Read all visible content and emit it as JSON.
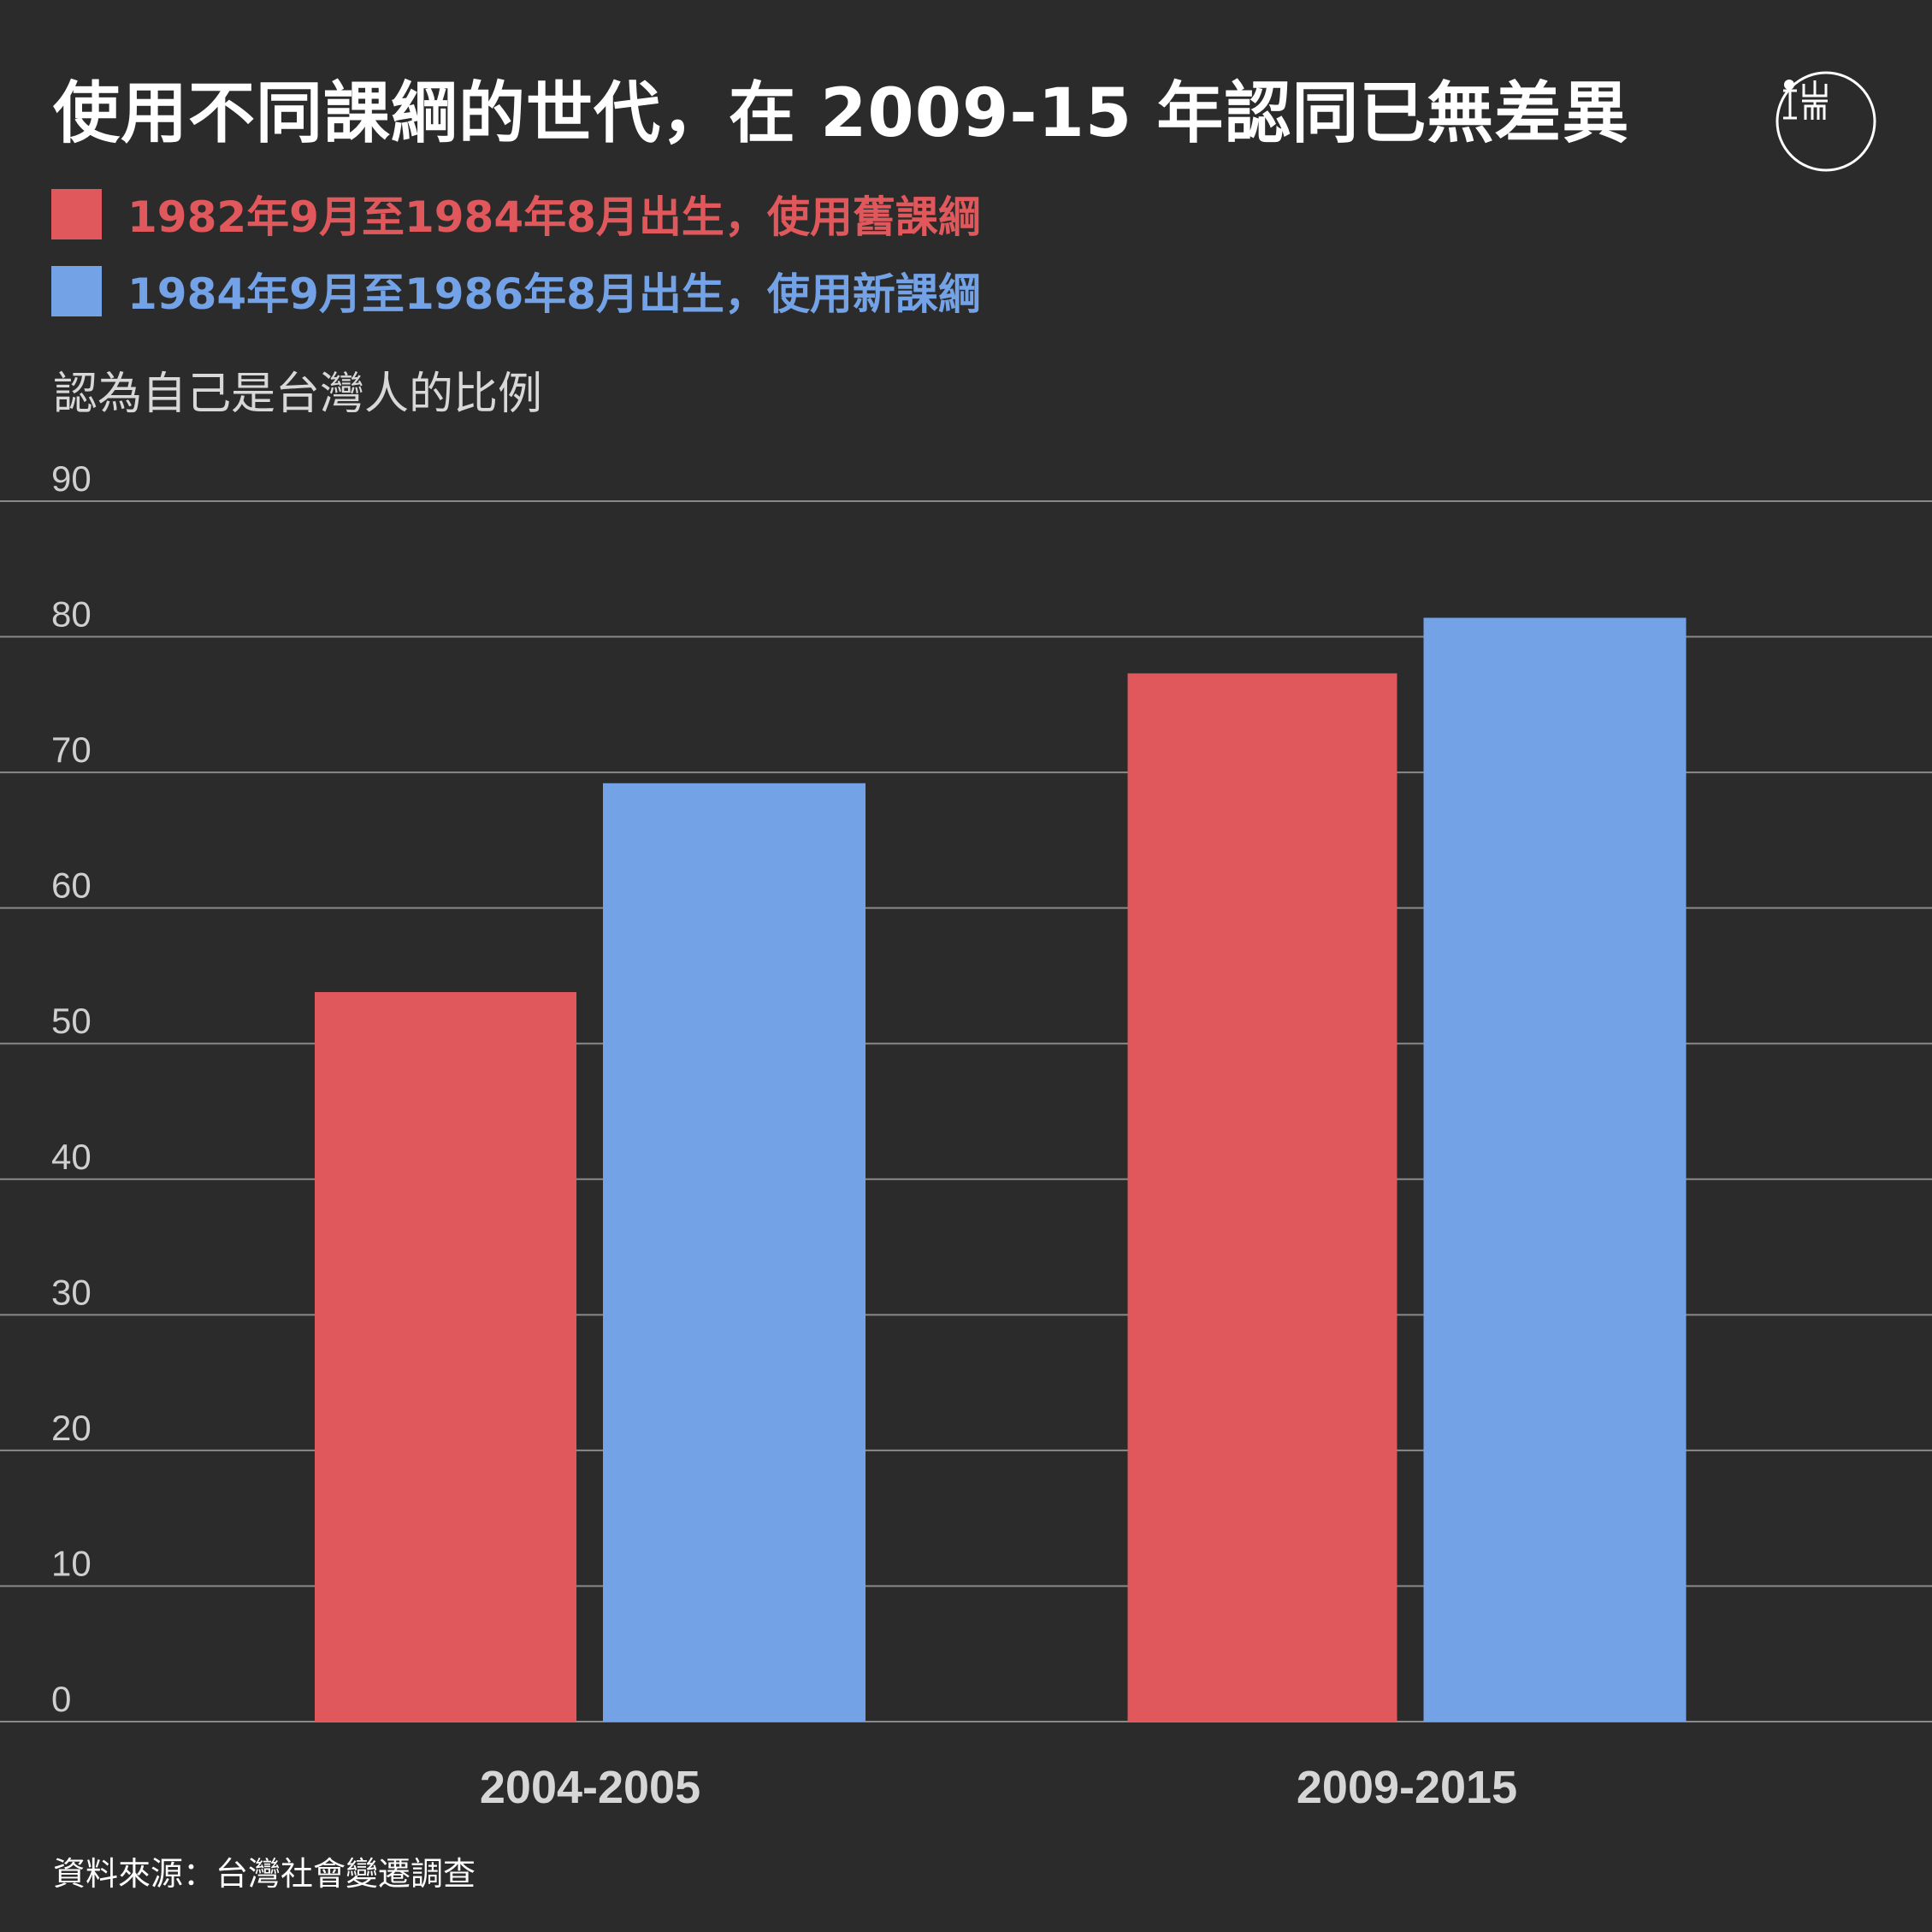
{
  "title": "使用不同課綱的世代，在 2009-15 年認同已無差異",
  "logo": {
    "text": "端",
    "icon": "initium-logo-icon"
  },
  "legend": [
    {
      "label": "1982年9月至1984年8月出生，使用舊課綱",
      "color": "#e0585b"
    },
    {
      "label": "1984年9月至1986年8月出生，使用新課綱",
      "color": "#73a2e6"
    }
  ],
  "ylabel": "認為自己是台灣人的比例",
  "source": "資料來源：台灣社會變遷調查",
  "colors": {
    "background": "#2b2b2b",
    "grid": "#8a8a8a",
    "tick": "#cfcfcf",
    "category": "#d6d6d6"
  },
  "chart_data": {
    "type": "bar",
    "title": "使用不同課綱的世代，在 2009-15 年認同已無差異",
    "xlabel": "",
    "ylabel": "認為自己是台灣人的比例",
    "categories": [
      "2004-2005",
      "2009-2015"
    ],
    "series": [
      {
        "name": "1982年9月至1984年8月出生，使用舊課綱",
        "values": [
          53.8,
          77.3
        ],
        "color": "#e0585b"
      },
      {
        "name": "1984年9月至1986年8月出生，使用新課綱",
        "values": [
          69.2,
          81.4
        ],
        "color": "#73a2e6"
      }
    ],
    "ylim": [
      0,
      90
    ],
    "yticks": [
      0,
      10,
      20,
      30,
      40,
      50,
      60,
      70,
      80,
      90
    ],
    "grid": true,
    "legend_position": "top-left"
  }
}
